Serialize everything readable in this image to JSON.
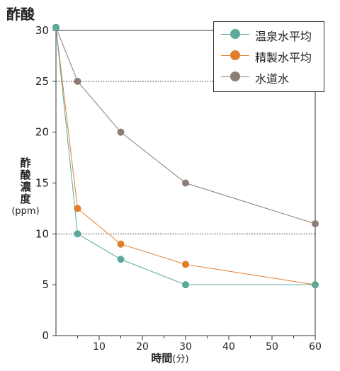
{
  "title": "酢酸",
  "chart_data": {
    "type": "line",
    "title": "酢酸",
    "xlabel": "時間",
    "xlabel_unit": "(分)",
    "ylabel_chars": [
      "酢",
      "酸",
      "濃",
      "度"
    ],
    "ylabel_unit": "(ppm)",
    "xlim": [
      0,
      60
    ],
    "ylim": [
      0,
      30
    ],
    "x_ticks_labeled": [
      10,
      20,
      30,
      40,
      50,
      60
    ],
    "x_ticks_minor": [
      5,
      15,
      25,
      35,
      45,
      55
    ],
    "y_ticks": [
      0,
      5,
      10,
      15,
      20,
      25,
      30
    ],
    "reference_lines_y": [
      10,
      25
    ],
    "legend_position": "top-right",
    "series": [
      {
        "name": "温泉水平均",
        "color": "#5aa99a",
        "points": [
          [
            0,
            30.3
          ],
          [
            5,
            10
          ],
          [
            15,
            7.5
          ],
          [
            30,
            5
          ],
          [
            60,
            5
          ]
        ]
      },
      {
        "name": "精製水平均",
        "color": "#e07e2c",
        "points": [
          [
            0,
            30.3
          ],
          [
            5,
            12.5
          ],
          [
            15,
            9
          ],
          [
            30,
            7
          ],
          [
            60,
            5
          ]
        ]
      },
      {
        "name": "水道水",
        "color": "#8d7d75",
        "points": [
          [
            0,
            30.3
          ],
          [
            5,
            25
          ],
          [
            15,
            20
          ],
          [
            30,
            15
          ],
          [
            60,
            11
          ]
        ]
      }
    ]
  }
}
